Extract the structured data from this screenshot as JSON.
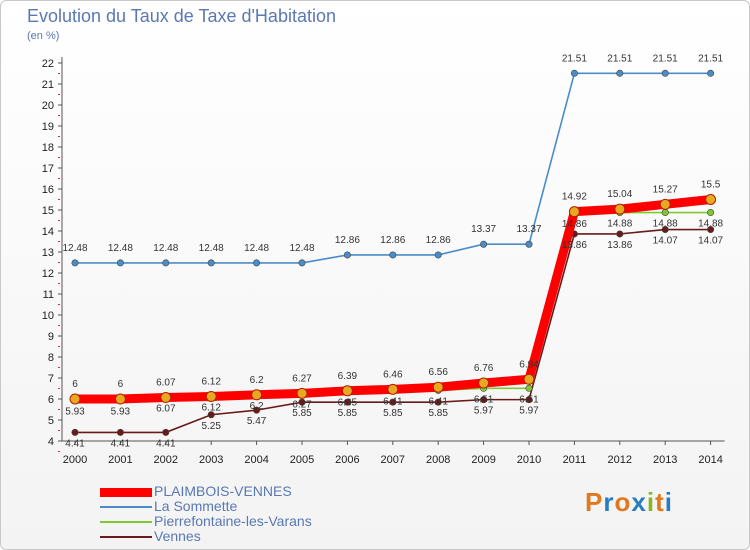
{
  "title": "Evolution du Taux de Taxe d'Habitation",
  "unit_label": "(en %)",
  "logo": {
    "letters": [
      "P",
      "r",
      "o",
      "x",
      "i",
      "t",
      "i"
    ],
    "colors": [
      "#e07820",
      "#2a7cc0",
      "#e07820",
      "#2a7cc0",
      "#86b820",
      "#e07820",
      "#2a7cc0"
    ]
  },
  "chart_data": {
    "type": "line",
    "title": "Evolution du Taux de Taxe d'Habitation",
    "ylabel": "(en %)",
    "xlabel": "",
    "ylim": [
      4,
      22
    ],
    "yticks": [
      4,
      5,
      6,
      7,
      8,
      9,
      10,
      11,
      12,
      13,
      14,
      15,
      16,
      17,
      18,
      19,
      20,
      21,
      22
    ],
    "x": [
      "2000",
      "2001",
      "2002",
      "2003",
      "2004",
      "2005",
      "2006",
      "2007",
      "2008",
      "2009",
      "2010",
      "2011",
      "2012",
      "2013",
      "2014"
    ],
    "grid": false,
    "legend_position": "bottom-left",
    "series": [
      {
        "name": "PLAIMBOIS-VENNES",
        "color": "#ff0000",
        "thick": true,
        "values": [
          6,
          6,
          6.07,
          6.12,
          6.2,
          6.27,
          6.39,
          6.46,
          6.56,
          6.76,
          6.94,
          14.92,
          15.04,
          15.27,
          15.5
        ]
      },
      {
        "name": "La Sommette",
        "color": "#4a8cc8",
        "thick": false,
        "values": [
          12.48,
          12.48,
          12.48,
          12.48,
          12.48,
          12.48,
          12.86,
          12.86,
          12.86,
          13.37,
          13.37,
          21.51,
          21.51,
          21.51,
          21.51
        ]
      },
      {
        "name": "Pierrefontaine-les-Varans",
        "color": "#80c830",
        "thick": false,
        "values": [
          5.93,
          5.93,
          6.07,
          6.12,
          6.2,
          6.27,
          6.35,
          6.41,
          6.41,
          6.51,
          6.51,
          14.86,
          14.88,
          14.88,
          14.88
        ]
      },
      {
        "name": "Vennes",
        "color": "#6a1a1a",
        "thick": false,
        "values": [
          4.41,
          4.41,
          4.41,
          5.25,
          5.47,
          5.85,
          5.85,
          5.85,
          5.85,
          5.97,
          5.97,
          13.86,
          13.86,
          14.07,
          14.07
        ]
      }
    ]
  }
}
